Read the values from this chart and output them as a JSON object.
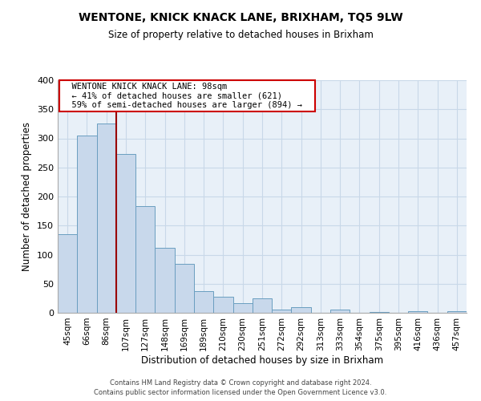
{
  "title": "WENTONE, KNICK KNACK LANE, BRIXHAM, TQ5 9LW",
  "subtitle": "Size of property relative to detached houses in Brixham",
  "xlabel": "Distribution of detached houses by size in Brixham",
  "ylabel": "Number of detached properties",
  "bar_color": "#c8d8eb",
  "bar_edge_color": "#6a9ec0",
  "marker_line_color": "#990000",
  "categories": [
    "45sqm",
    "66sqm",
    "86sqm",
    "107sqm",
    "127sqm",
    "148sqm",
    "169sqm",
    "189sqm",
    "210sqm",
    "230sqm",
    "251sqm",
    "272sqm",
    "292sqm",
    "313sqm",
    "333sqm",
    "354sqm",
    "375sqm",
    "395sqm",
    "416sqm",
    "436sqm",
    "457sqm"
  ],
  "values": [
    135,
    305,
    325,
    273,
    183,
    112,
    84,
    37,
    27,
    17,
    25,
    5,
    10,
    0,
    5,
    0,
    2,
    0,
    3,
    0,
    3
  ],
  "ylim": [
    0,
    400
  ],
  "yticks": [
    0,
    50,
    100,
    150,
    200,
    250,
    300,
    350,
    400
  ],
  "marker_bin_index": 2,
  "annotation_title": "WENTONE KNICK KNACK LANE: 98sqm",
  "annotation_line1": "← 41% of detached houses are smaller (621)",
  "annotation_line2": "59% of semi-detached houses are larger (894) →",
  "footer1": "Contains HM Land Registry data © Crown copyright and database right 2024.",
  "footer2": "Contains public sector information licensed under the Open Government Licence v3.0.",
  "background_color": "#ffffff",
  "plot_bg_color": "#e8f0f8",
  "grid_color": "#c8d8e8"
}
